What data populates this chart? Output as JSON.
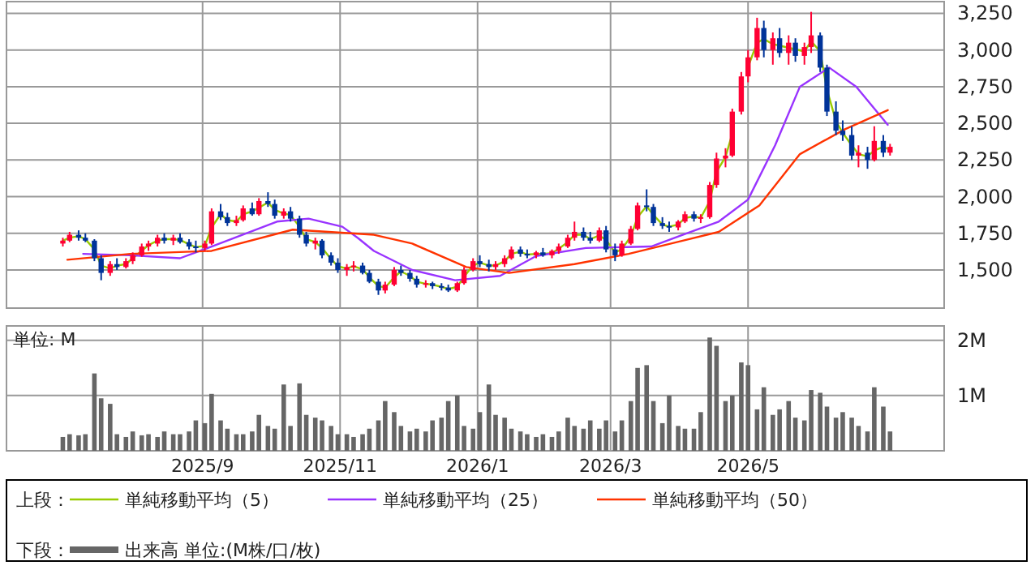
{
  "chart_data": [
    {
      "type": "candlestick",
      "legend": "bottom",
      "legend_title": "上段：",
      "grid": true,
      "tick_labels": "y",
      "xlim": [
        "2025-06-06",
        "2026-07-27"
      ],
      "xticks": [
        {
          "value": "2025-09-01",
          "label": null
        },
        {
          "value": "2025-11-01",
          "label": null
        },
        {
          "value": "2026-01-01",
          "label": null
        },
        {
          "value": "2026-03-01",
          "label": null
        },
        {
          "value": "2026-05-01",
          "label": null
        }
      ],
      "ylim": [
        1240,
        3330
      ],
      "yticks": [
        {
          "value": 1500,
          "label": "1,500"
        },
        {
          "value": 1750,
          "label": "1,750"
        },
        {
          "value": 2000,
          "label": "2,000"
        },
        {
          "value": 2250,
          "label": "2,250"
        },
        {
          "value": 2500,
          "label": "2,500"
        },
        {
          "value": 2750,
          "label": "2,750"
        },
        {
          "value": 3000,
          "label": "3,000"
        },
        {
          "value": 3250,
          "label": "3,250"
        }
      ],
      "x": [
        "2025-07-01",
        "2025-07-04",
        "2025-07-08",
        "2025-07-11",
        "2025-07-15",
        "2025-07-18",
        "2025-07-22",
        "2025-07-25",
        "2025-07-29",
        "2025-08-01",
        "2025-08-05",
        "2025-08-08",
        "2025-08-12",
        "2025-08-15",
        "2025-08-19",
        "2025-08-22",
        "2025-08-26",
        "2025-08-29",
        "2025-09-02",
        "2025-09-05",
        "2025-09-09",
        "2025-09-12",
        "2025-09-16",
        "2025-09-19",
        "2025-09-23",
        "2025-09-26",
        "2025-09-30",
        "2025-10-03",
        "2025-10-07",
        "2025-10-10",
        "2025-10-14",
        "2025-10-17",
        "2025-10-21",
        "2025-10-24",
        "2025-10-28",
        "2025-10-31",
        "2025-11-04",
        "2025-11-07",
        "2025-11-11",
        "2025-11-14",
        "2025-11-18",
        "2025-11-21",
        "2025-11-25",
        "2025-11-28",
        "2025-12-02",
        "2025-12-05",
        "2025-12-09",
        "2025-12-12",
        "2025-12-16",
        "2025-12-19",
        "2025-12-23",
        "2025-12-26",
        "2025-12-30",
        "2026-01-02",
        "2026-01-06",
        "2026-01-09",
        "2026-01-13",
        "2026-01-16",
        "2026-01-20",
        "2026-01-23",
        "2026-01-27",
        "2026-01-30",
        "2026-02-03",
        "2026-02-06",
        "2026-02-10",
        "2026-02-13",
        "2026-02-17",
        "2026-02-20",
        "2026-02-24",
        "2026-02-27",
        "2026-03-03",
        "2026-03-06",
        "2026-03-10",
        "2026-03-13",
        "2026-03-17",
        "2026-03-20",
        "2026-03-24",
        "2026-03-27",
        "2026-03-31",
        "2026-04-03",
        "2026-04-07",
        "2026-04-10",
        "2026-04-14",
        "2026-04-17",
        "2026-04-21",
        "2026-04-24",
        "2026-04-28",
        "2026-05-01",
        "2026-05-05",
        "2026-05-08",
        "2026-05-12",
        "2026-05-15",
        "2026-05-19",
        "2026-05-22",
        "2026-05-26",
        "2026-05-29",
        "2026-06-02",
        "2026-06-05",
        "2026-06-09",
        "2026-06-12",
        "2026-06-16",
        "2026-06-19",
        "2026-06-23",
        "2026-06-26",
        "2026-06-30",
        "2026-07-03"
      ],
      "ohlc": [
        [
          1680,
          1720,
          1660,
          1700
        ],
        [
          1700,
          1760,
          1690,
          1740
        ],
        [
          1740,
          1770,
          1700,
          1720
        ],
        [
          1720,
          1750,
          1690,
          1700
        ],
        [
          1700,
          1710,
          1560,
          1580
        ],
        [
          1580,
          1600,
          1430,
          1480
        ],
        [
          1480,
          1560,
          1460,
          1540
        ],
        [
          1540,
          1580,
          1500,
          1520
        ],
        [
          1520,
          1580,
          1510,
          1560
        ],
        [
          1560,
          1620,
          1540,
          1600
        ],
        [
          1600,
          1680,
          1590,
          1660
        ],
        [
          1660,
          1700,
          1630,
          1680
        ],
        [
          1680,
          1740,
          1660,
          1720
        ],
        [
          1720,
          1750,
          1680,
          1700
        ],
        [
          1700,
          1740,
          1670,
          1720
        ],
        [
          1720,
          1750,
          1680,
          1690
        ],
        [
          1690,
          1710,
          1640,
          1660
        ],
        [
          1660,
          1700,
          1620,
          1650
        ],
        [
          1650,
          1700,
          1630,
          1680
        ],
        [
          1680,
          1920,
          1670,
          1900
        ],
        [
          1900,
          1950,
          1840,
          1860
        ],
        [
          1860,
          1890,
          1800,
          1820
        ],
        [
          1820,
          1870,
          1800,
          1840
        ],
        [
          1840,
          1940,
          1830,
          1920
        ],
        [
          1920,
          1960,
          1870,
          1880
        ],
        [
          1880,
          1990,
          1870,
          1970
        ],
        [
          1970,
          2030,
          1930,
          1950
        ],
        [
          1950,
          1980,
          1850,
          1870
        ],
        [
          1870,
          1920,
          1850,
          1900
        ],
        [
          1900,
          1930,
          1830,
          1850
        ],
        [
          1850,
          1870,
          1720,
          1740
        ],
        [
          1740,
          1760,
          1660,
          1680
        ],
        [
          1680,
          1720,
          1640,
          1700
        ],
        [
          1700,
          1710,
          1580,
          1600
        ],
        [
          1600,
          1620,
          1530,
          1550
        ],
        [
          1550,
          1580,
          1480,
          1500
        ],
        [
          1500,
          1540,
          1460,
          1520
        ],
        [
          1520,
          1560,
          1490,
          1530
        ],
        [
          1530,
          1550,
          1470,
          1480
        ],
        [
          1480,
          1500,
          1410,
          1420
        ],
        [
          1420,
          1440,
          1330,
          1360
        ],
        [
          1360,
          1420,
          1340,
          1400
        ],
        [
          1400,
          1520,
          1390,
          1500
        ],
        [
          1500,
          1530,
          1460,
          1480
        ],
        [
          1480,
          1500,
          1420,
          1440
        ],
        [
          1440,
          1460,
          1380,
          1400
        ],
        [
          1400,
          1430,
          1380,
          1410
        ],
        [
          1410,
          1420,
          1370,
          1390
        ],
        [
          1390,
          1410,
          1360,
          1380
        ],
        [
          1380,
          1400,
          1350,
          1360
        ],
        [
          1360,
          1420,
          1350,
          1410
        ],
        [
          1410,
          1520,
          1400,
          1500
        ],
        [
          1500,
          1580,
          1490,
          1560
        ],
        [
          1560,
          1600,
          1520,
          1540
        ],
        [
          1540,
          1570,
          1490,
          1520
        ],
        [
          1520,
          1560,
          1500,
          1540
        ],
        [
          1540,
          1600,
          1520,
          1580
        ],
        [
          1580,
          1660,
          1570,
          1640
        ],
        [
          1640,
          1660,
          1590,
          1610
        ],
        [
          1610,
          1640,
          1580,
          1600
        ],
        [
          1600,
          1630,
          1580,
          1620
        ],
        [
          1620,
          1650,
          1590,
          1600
        ],
        [
          1600,
          1640,
          1580,
          1630
        ],
        [
          1630,
          1680,
          1610,
          1660
        ],
        [
          1660,
          1740,
          1650,
          1720
        ],
        [
          1720,
          1830,
          1700,
          1760
        ],
        [
          1760,
          1790,
          1700,
          1720
        ],
        [
          1720,
          1760,
          1680,
          1700
        ],
        [
          1700,
          1790,
          1690,
          1770
        ],
        [
          1770,
          1800,
          1620,
          1640
        ],
        [
          1640,
          1680,
          1560,
          1600
        ],
        [
          1600,
          1700,
          1590,
          1680
        ],
        [
          1680,
          1800,
          1670,
          1780
        ],
        [
          1780,
          1960,
          1770,
          1940
        ],
        [
          1940,
          2050,
          1900,
          1930
        ],
        [
          1930,
          1950,
          1800,
          1820
        ],
        [
          1820,
          1860,
          1780,
          1800
        ],
        [
          1800,
          1830,
          1760,
          1790
        ],
        [
          1790,
          1840,
          1770,
          1830
        ],
        [
          1830,
          1900,
          1820,
          1880
        ],
        [
          1880,
          1900,
          1830,
          1850
        ],
        [
          1850,
          1880,
          1820,
          1860
        ],
        [
          1860,
          2100,
          1850,
          2080
        ],
        [
          2080,
          2300,
          2060,
          2260
        ],
        [
          2260,
          2330,
          2200,
          2280
        ],
        [
          2280,
          2600,
          2270,
          2580
        ],
        [
          2580,
          2850,
          2560,
          2820
        ],
        [
          2820,
          3000,
          2780,
          2950
        ],
        [
          2950,
          3220,
          2930,
          3150
        ],
        [
          3150,
          3200,
          2950,
          3000
        ],
        [
          3000,
          3120,
          2900,
          3080
        ],
        [
          3080,
          3150,
          2950,
          2980
        ],
        [
          2980,
          3100,
          2900,
          3050
        ],
        [
          3050,
          3080,
          2920,
          2960
        ],
        [
          2960,
          3050,
          2900,
          3020
        ],
        [
          3020,
          3260,
          2980,
          3100
        ],
        [
          3100,
          3120,
          2850,
          2880
        ],
        [
          2880,
          2900,
          2550,
          2580
        ],
        [
          2580,
          2650,
          2420,
          2450
        ],
        [
          2450,
          2520,
          2380,
          2420
        ],
        [
          2420,
          2480,
          2250,
          2280
        ],
        [
          2280,
          2350,
          2200,
          2300
        ],
        [
          2300,
          2340,
          2190,
          2250
        ],
        [
          2250,
          2480,
          2240,
          2380
        ],
        [
          2380,
          2420,
          2270,
          2300
        ],
        [
          2300,
          2360,
          2280,
          2340
        ]
      ],
      "series": [
        {
          "name": "単純移動平均（5）",
          "type": "line",
          "color": "#99cc00",
          "values": [
            1700,
            1720,
            1730,
            1710,
            1640,
            1530,
            1510,
            1530,
            1540,
            1580,
            1630,
            1670,
            1700,
            1710,
            1710,
            1705,
            1675,
            1655,
            1665,
            1790,
            1880,
            1840,
            1830,
            1880,
            1900,
            1925,
            1960,
            1910,
            1885,
            1875,
            1795,
            1710,
            1690,
            1650,
            1575,
            1525,
            1510,
            1525,
            1505,
            1450,
            1390,
            1380,
            1450,
            1490,
            1460,
            1420,
            1405,
            1400,
            1385,
            1370,
            1385,
            1455,
            1530,
            1550,
            1530,
            1530,
            1560,
            1610,
            1625,
            1605,
            1610,
            1610,
            1615,
            1645,
            1690,
            1740,
            1740,
            1710,
            1735,
            1705,
            1620,
            1640,
            1730,
            1860,
            1935,
            1875,
            1810,
            1795,
            1810,
            1855,
            1865,
            1855,
            1970,
            2170,
            2270,
            2430,
            null,
            2885,
            3050,
            3075,
            3040,
            3030,
            3015,
            3005,
            2990,
            3060,
            2990,
            2730,
            2515,
            2435,
            2350,
            2290,
            2275,
            2315,
            2340,
            2320
          ]
        },
        {
          "name": "単純移動平均（25）",
          "type": "line",
          "color": "#9933ff",
          "x": [
            "2025-07-10",
            "2025-07-31",
            "2025-08-22",
            "2025-09-05",
            "2025-10-04",
            "2025-10-18",
            "2025-11-02",
            "2025-11-09",
            "2025-11-16",
            "2025-12-03",
            "2025-12-22",
            "2026-01-11",
            "2026-01-27",
            "2026-02-18",
            "2026-03-19",
            "2026-04-02",
            "2026-04-18",
            "2026-05-01",
            "2026-05-13",
            "2026-05-24",
            "2026-06-06",
            "2026-06-18",
            "2026-07-02"
          ],
          "values": [
            1610,
            1600,
            1580,
            1660,
            1830,
            1850,
            1795,
            1717,
            1630,
            1500,
            1430,
            1460,
            1595,
            1650,
            1660,
            1740,
            1830,
            1980,
            2350,
            2750,
            2880,
            2750,
            2490
          ]
        },
        {
          "name": "単純移動平均（50）",
          "type": "line",
          "color": "#ff3300",
          "x": [
            "2025-07-03",
            "2025-07-31",
            "2025-09-05",
            "2025-10-11",
            "2025-11-16",
            "2025-12-03",
            "2025-12-27",
            "2026-01-15",
            "2026-02-13",
            "2026-03-09",
            "2026-04-02",
            "2026-04-18",
            "2026-05-06",
            "2026-05-24",
            "2026-06-13",
            "2026-07-02"
          ],
          "values": [
            1570,
            1610,
            1630,
            1775,
            1740,
            1680,
            1520,
            1480,
            1540,
            1610,
            1700,
            1760,
            1940,
            2290,
            2460,
            2590
          ]
        }
      ]
    },
    {
      "type": "bar",
      "legend": "bottom",
      "legend_title": "下段：",
      "grid": true,
      "ylabel": "単位: M",
      "xlim": [
        "2025-06-06",
        "2026-07-27"
      ],
      "xticks": [
        {
          "value": "2025-09-01",
          "label": "2025/9"
        },
        {
          "value": "2025-11-01",
          "label": "2025/11"
        },
        {
          "value": "2026-01-01",
          "label": "2026/1"
        },
        {
          "value": "2026-03-01",
          "label": "2026/3"
        },
        {
          "value": "2026-05-01",
          "label": "2026/5"
        }
      ],
      "ylim": [
        0,
        2.26
      ],
      "yticks": [
        {
          "value": 1,
          "label": "1M"
        },
        {
          "value": 2,
          "label": "2M"
        }
      ],
      "x": [
        "2025-07-01",
        "2025-07-04",
        "2025-07-08",
        "2025-07-11",
        "2025-07-15",
        "2025-07-18",
        "2025-07-22",
        "2025-07-25",
        "2025-07-29",
        "2025-08-01",
        "2025-08-05",
        "2025-08-08",
        "2025-08-12",
        "2025-08-15",
        "2025-08-19",
        "2025-08-22",
        "2025-08-26",
        "2025-08-29",
        "2025-09-02",
        "2025-09-05",
        "2025-09-09",
        "2025-09-12",
        "2025-09-16",
        "2025-09-19",
        "2025-09-23",
        "2025-09-26",
        "2025-09-30",
        "2025-10-03",
        "2025-10-07",
        "2025-10-10",
        "2025-10-14",
        "2025-10-17",
        "2025-10-21",
        "2025-10-24",
        "2025-10-28",
        "2025-10-31",
        "2025-11-04",
        "2025-11-07",
        "2025-11-11",
        "2025-11-14",
        "2025-11-18",
        "2025-11-21",
        "2025-11-25",
        "2025-11-28",
        "2025-12-02",
        "2025-12-05",
        "2025-12-09",
        "2025-12-12",
        "2025-12-16",
        "2025-12-19",
        "2025-12-23",
        "2025-12-26",
        "2025-12-30",
        "2026-01-02",
        "2026-01-06",
        "2026-01-09",
        "2026-01-13",
        "2026-01-16",
        "2026-01-20",
        "2026-01-23",
        "2026-01-27",
        "2026-01-30",
        "2026-02-03",
        "2026-02-06",
        "2026-02-10",
        "2026-02-13",
        "2026-02-17",
        "2026-02-20",
        "2026-02-24",
        "2026-02-27",
        "2026-03-03",
        "2026-03-06",
        "2026-03-10",
        "2026-03-13",
        "2026-03-17",
        "2026-03-20",
        "2026-03-24",
        "2026-03-27",
        "2026-03-31",
        "2026-04-03",
        "2026-04-07",
        "2026-04-10",
        "2026-04-14",
        "2026-04-17",
        "2026-04-21",
        "2026-04-24",
        "2026-04-28",
        "2026-05-01",
        "2026-05-05",
        "2026-05-08",
        "2026-05-12",
        "2026-05-15",
        "2026-05-19",
        "2026-05-22",
        "2026-05-26",
        "2026-05-29",
        "2026-06-02",
        "2026-06-05",
        "2026-06-09",
        "2026-06-12",
        "2026-06-16",
        "2026-06-19",
        "2026-06-23",
        "2026-06-26",
        "2026-06-30",
        "2026-07-03"
      ],
      "series": [
        {
          "name": "出来高 単位:(M株/口/枚)",
          "color": "#666666",
          "values": [
            0.25,
            0.3,
            0.28,
            0.3,
            1.4,
            0.95,
            0.85,
            0.3,
            0.25,
            0.35,
            0.28,
            0.3,
            0.25,
            0.35,
            0.3,
            0.3,
            0.35,
            0.55,
            0.5,
            1.03,
            0.55,
            0.4,
            0.3,
            0.3,
            0.35,
            0.65,
            0.45,
            0.4,
            1.2,
            0.45,
            1.22,
            0.65,
            0.6,
            0.55,
            0.45,
            0.3,
            0.3,
            0.25,
            0.3,
            0.4,
            0.55,
            0.9,
            0.7,
            0.45,
            0.35,
            0.4,
            0.35,
            0.55,
            0.6,
            0.9,
            1.0,
            0.45,
            0.4,
            0.7,
            1.2,
            0.65,
            0.6,
            0.4,
            0.35,
            0.3,
            0.25,
            0.3,
            0.25,
            0.35,
            0.6,
            0.45,
            0.4,
            0.55,
            0.4,
            0.55,
            0.35,
            0.55,
            0.9,
            1.5,
            1.55,
            0.9,
            0.5,
            1.0,
            0.45,
            0.4,
            0.4,
            0.7,
            2.05,
            1.9,
            0.9,
            1.0,
            1.6,
            1.55,
            0.75,
            1.15,
            0.65,
            0.75,
            0.9,
            0.6,
            0.55,
            1.1,
            1.05,
            0.8,
            0.6,
            0.7,
            0.6,
            0.45,
            0.35,
            1.15,
            0.8,
            0.35
          ]
        }
      ]
    }
  ]
}
